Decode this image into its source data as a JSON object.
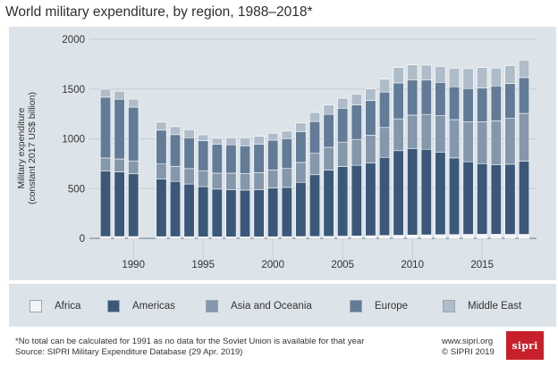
{
  "header": {
    "title": "World military expenditure, by region, 1988–2018*"
  },
  "chart_data": {
    "type": "bar",
    "stacked": true,
    "title": "World military expenditure, by region, 1988–2018*",
    "ylabel_line1": "Military expenditure",
    "ylabel_line2": "(constant 2017 US$ billion)",
    "xlabel": "",
    "ylim": [
      0,
      2000
    ],
    "yticks": [
      0,
      500,
      1000,
      1500,
      2000
    ],
    "xticks": [
      "1990",
      "1995",
      "2000",
      "2005",
      "2010",
      "2015"
    ],
    "grid": true,
    "legend_position": "bottom",
    "x": [
      1988,
      1989,
      1990,
      1991,
      1992,
      1993,
      1994,
      1995,
      1996,
      1997,
      1998,
      1999,
      2000,
      2001,
      2002,
      2003,
      2004,
      2005,
      2006,
      2007,
      2008,
      2009,
      2010,
      2011,
      2012,
      2013,
      2014,
      2015,
      2016,
      2017,
      2018
    ],
    "series": [
      {
        "name": "Africa",
        "color": "#f3f5f7",
        "values": [
          18,
          18,
          18,
          null,
          17,
          17,
          16,
          15,
          15,
          15,
          15,
          15,
          16,
          17,
          18,
          19,
          20,
          22,
          24,
          26,
          29,
          31,
          33,
          35,
          37,
          38,
          40,
          41,
          41,
          40,
          40
        ]
      },
      {
        "name": "Americas",
        "color": "#3b5878",
        "values": [
          660,
          650,
          630,
          null,
          580,
          555,
          530,
          505,
          480,
          475,
          470,
          475,
          490,
          495,
          545,
          620,
          665,
          700,
          710,
          730,
          785,
          850,
          870,
          860,
          830,
          770,
          730,
          710,
          700,
          705,
          735
        ]
      },
      {
        "name": "Asia and Oceania",
        "color": "#8497ab",
        "values": [
          130,
          130,
          130,
          null,
          150,
          150,
          155,
          160,
          160,
          165,
          165,
          170,
          180,
          190,
          200,
          215,
          230,
          245,
          260,
          280,
          300,
          320,
          335,
          350,
          365,
          385,
          400,
          420,
          440,
          460,
          480
        ]
      },
      {
        "name": "Europe",
        "color": "#627b97",
        "values": [
          610,
          600,
          540,
          null,
          340,
          320,
          310,
          300,
          290,
          285,
          280,
          285,
          300,
          300,
          310,
          320,
          330,
          340,
          345,
          350,
          355,
          360,
          355,
          345,
          335,
          330,
          335,
          340,
          350,
          350,
          360
        ]
      },
      {
        "name": "Middle East",
        "color": "#afbcc9",
        "values": [
          80,
          80,
          80,
          null,
          80,
          80,
          80,
          60,
          60,
          70,
          80,
          80,
          70,
          75,
          85,
          90,
          95,
          100,
          110,
          115,
          130,
          155,
          150,
          150,
          160,
          185,
          200,
          205,
          180,
          180,
          175
        ]
      }
    ],
    "footnote": "*No total can be calculated for 1991 as no data for the Soviet Union is available for that year"
  },
  "legend": {
    "items": [
      {
        "label": "Africa",
        "color": "#f3f5f7"
      },
      {
        "label": "Americas",
        "color": "#3b5878"
      },
      {
        "label": "Asia and Oceania",
        "color": "#8497ab"
      },
      {
        "label": "Europe",
        "color": "#627b97"
      },
      {
        "label": "Middle East",
        "color": "#afbcc9"
      }
    ]
  },
  "footer": {
    "footnote": "*No total can be calculated for 1991 as no data for the Soviet Union is available for that year",
    "source": "Source: SIPRI Military Expenditure Database (29 Apr. 2019)",
    "url": "www.sipri.org",
    "copyright": "© SIPRI 2019",
    "logo_text": "sipri",
    "logo_color": "#c8202a"
  }
}
